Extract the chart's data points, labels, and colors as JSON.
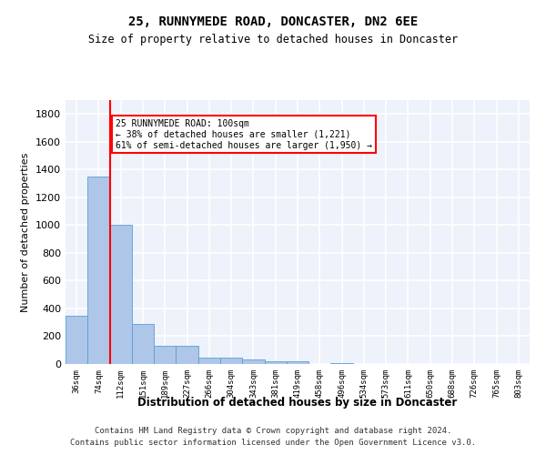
{
  "title1": "25, RUNNYMEDE ROAD, DONCASTER, DN2 6EE",
  "title2": "Size of property relative to detached houses in Doncaster",
  "xlabel": "Distribution of detached houses by size in Doncaster",
  "ylabel": "Number of detached properties",
  "categories": [
    "36sqm",
    "74sqm",
    "112sqm",
    "151sqm",
    "189sqm",
    "227sqm",
    "266sqm",
    "304sqm",
    "343sqm",
    "381sqm",
    "419sqm",
    "458sqm",
    "496sqm",
    "534sqm",
    "573sqm",
    "611sqm",
    "650sqm",
    "688sqm",
    "726sqm",
    "765sqm",
    "803sqm"
  ],
  "values": [
    350,
    1350,
    1000,
    290,
    130,
    130,
    45,
    45,
    30,
    20,
    20,
    0,
    5,
    0,
    0,
    0,
    0,
    0,
    0,
    0,
    0
  ],
  "bar_color": "#aec6e8",
  "bar_edge_color": "#5a9fd4",
  "red_line_x": 1.5,
  "red_line_label": "25 RUNNYMEDE ROAD: 100sqm",
  "annotation_line1": "← 38% of detached houses are smaller (1,221)",
  "annotation_line2": "61% of semi-detached houses are larger (1,950) →",
  "ylim": [
    0,
    1900
  ],
  "yticks": [
    0,
    200,
    400,
    600,
    800,
    1000,
    1200,
    1400,
    1600,
    1800
  ],
  "background_color": "#eef2fa",
  "grid_color": "#ffffff",
  "footnote1": "Contains HM Land Registry data © Crown copyright and database right 2024.",
  "footnote2": "Contains public sector information licensed under the Open Government Licence v3.0."
}
